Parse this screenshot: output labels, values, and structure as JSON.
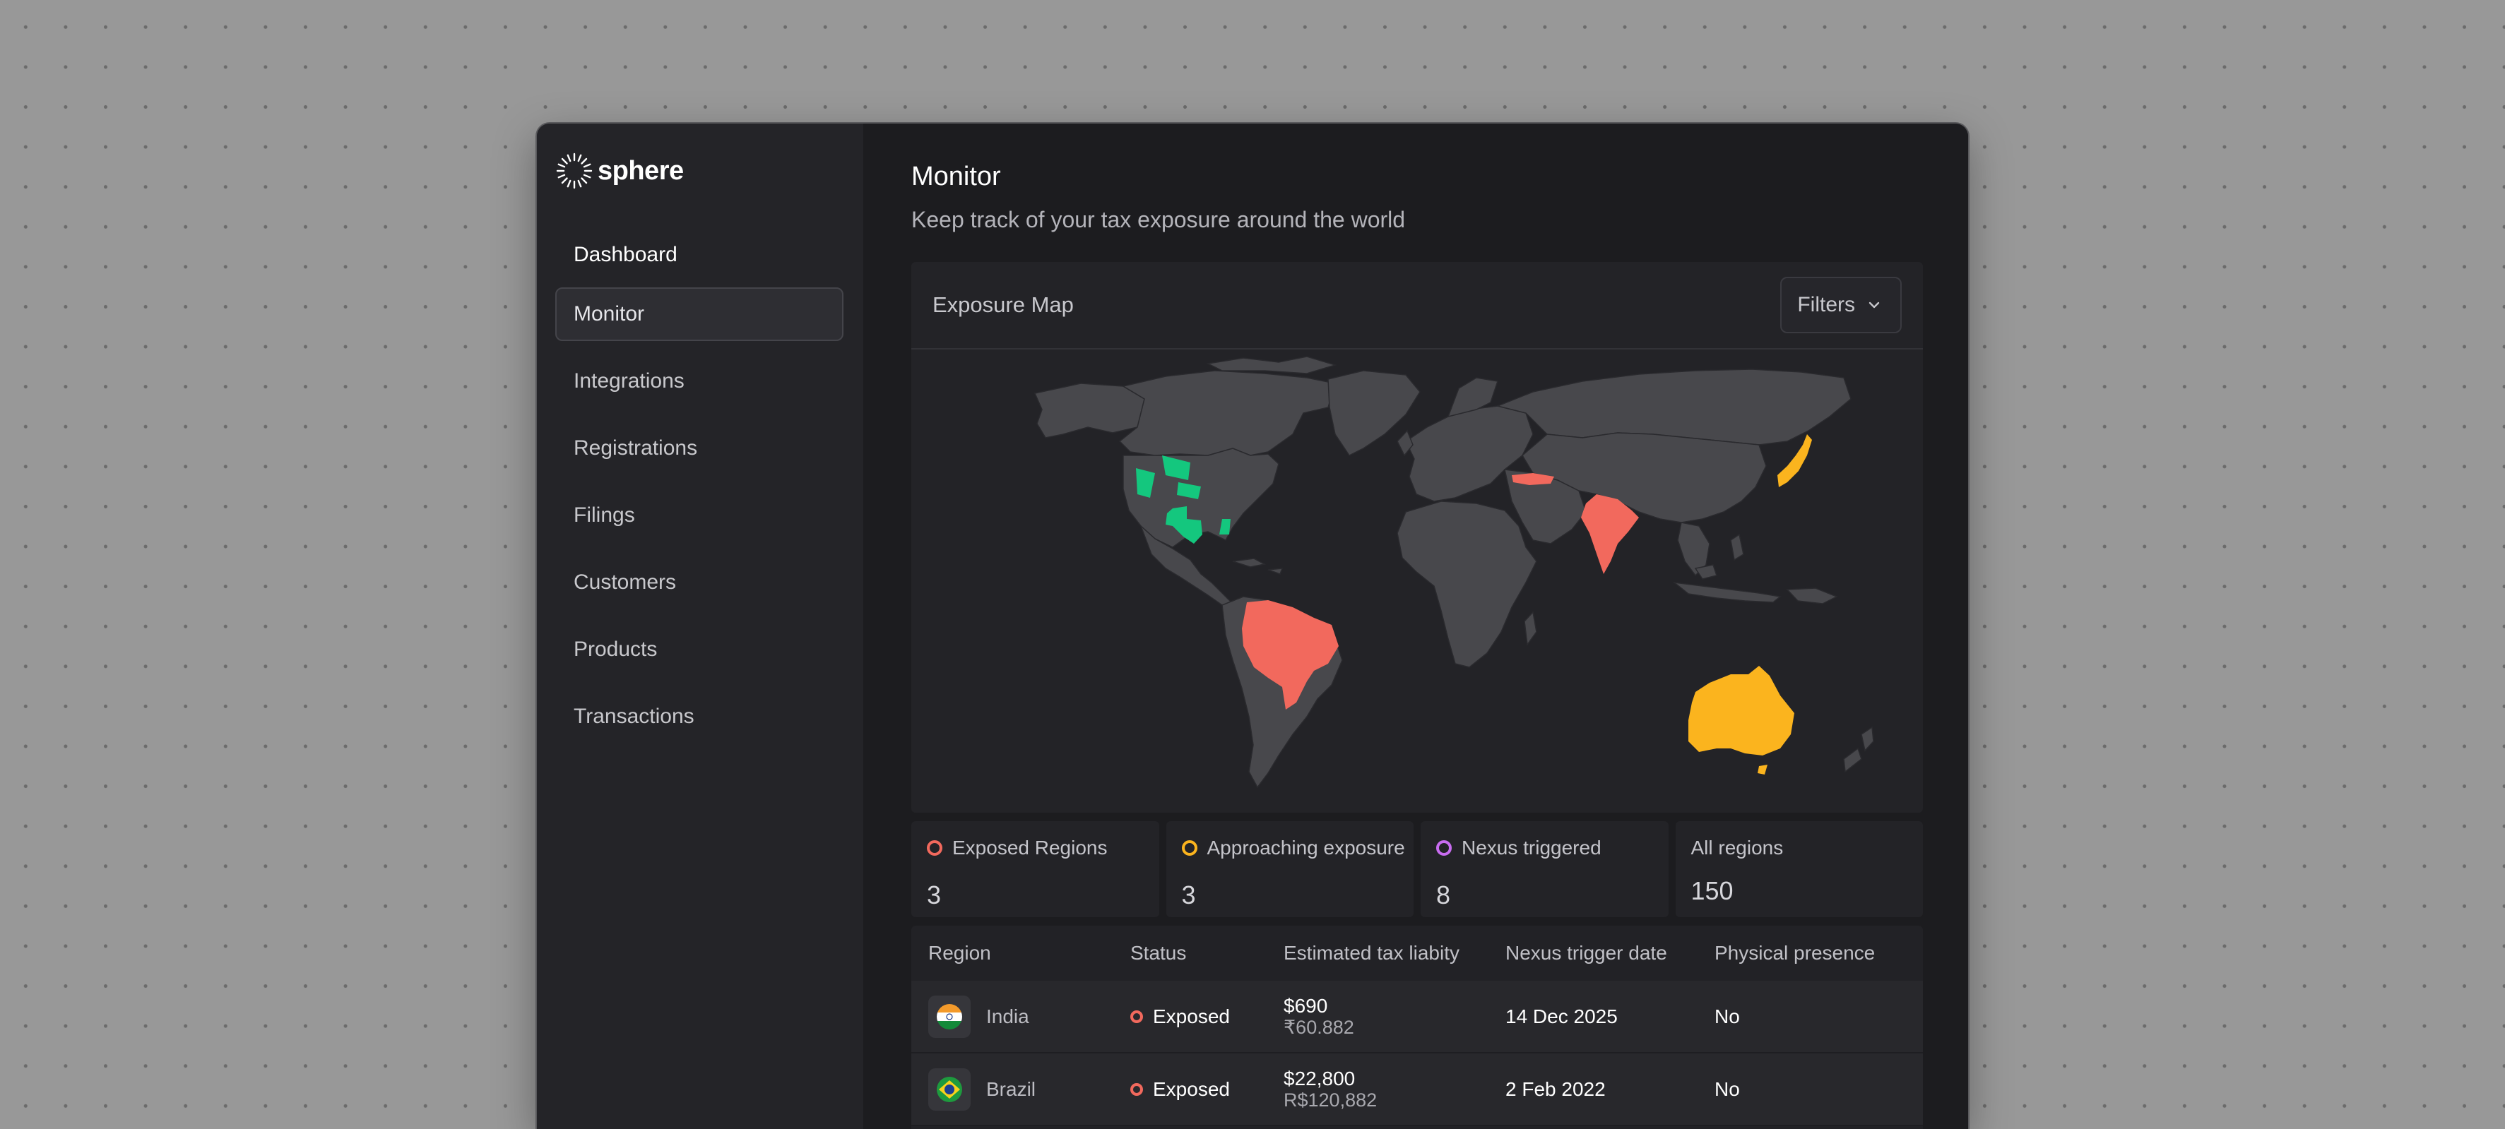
{
  "app": {
    "name": "sphere"
  },
  "sidebar": {
    "items": [
      {
        "label": "Dashboard"
      },
      {
        "label": "Monitor",
        "active": true
      },
      {
        "label": "Integrations"
      },
      {
        "label": "Registrations"
      },
      {
        "label": "Filings"
      },
      {
        "label": "Customers"
      },
      {
        "label": "Products"
      },
      {
        "label": "Transactions"
      }
    ]
  },
  "page": {
    "title": "Monitor",
    "subtitle": "Keep track of your tax exposure around the world"
  },
  "map": {
    "title": "Exposure Map",
    "filters_label": "Filters",
    "colors": {
      "exposed": "#f2695d",
      "approaching": "#fbb41e",
      "nexus": "#14c77e",
      "land": "#48484c"
    },
    "highlighted": {
      "exposed": [
        "India",
        "Brazil",
        "Turkey"
      ],
      "approaching": [
        "Australia",
        "Japan"
      ],
      "nexus": [
        "US states"
      ]
    }
  },
  "stats": [
    {
      "label": "Exposed Regions",
      "value": "3",
      "color": "#f2695d"
    },
    {
      "label": "Approaching exposure",
      "value": "3",
      "color": "#fbb41e"
    },
    {
      "label": "Nexus triggered",
      "value": "8",
      "color": "#c86cf0"
    },
    {
      "label": "All regions",
      "value": "150"
    }
  ],
  "table": {
    "headers": [
      "Region",
      "Status",
      "Estimated tax liabity",
      "Nexus trigger date",
      "Physical presence"
    ],
    "rows": [
      {
        "flag": "india-flag-icon",
        "region": "India",
        "status": "Exposed",
        "status_color": "#f2695d",
        "amount": "$690",
        "amount_local": "₹60.882",
        "date": "14 Dec 2025",
        "physical": "No"
      },
      {
        "flag": "brazil-flag-icon",
        "region": "Brazil",
        "status": "Exposed",
        "status_color": "#f2695d",
        "amount": "$22,800",
        "amount_local": "R$120,882",
        "date": "2 Feb 2022",
        "physical": "No"
      }
    ]
  }
}
